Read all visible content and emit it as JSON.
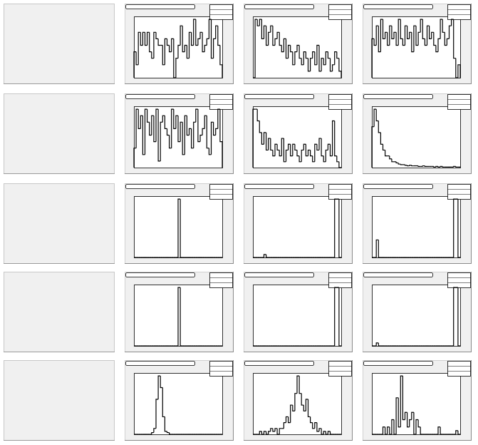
{
  "panels": [
    {
      "values": [
        4,
        2,
        7,
        5,
        7,
        5,
        7,
        4,
        3,
        7,
        6,
        5,
        5,
        2,
        6,
        5,
        4,
        6,
        0,
        3,
        5,
        8,
        4,
        5,
        3,
        7,
        5,
        9,
        5,
        6,
        7,
        4,
        5,
        6,
        9,
        3,
        6,
        8,
        5,
        2
      ]
    },
    {
      "values": [
        0,
        9,
        8,
        9,
        6,
        8,
        5,
        7,
        8,
        5,
        6,
        7,
        5,
        4,
        6,
        3,
        5,
        4,
        2,
        4,
        5,
        3,
        2,
        4,
        3,
        1,
        3,
        4,
        2,
        5,
        1,
        3,
        2,
        4,
        3,
        1,
        2,
        4,
        3,
        1
      ]
    },
    {
      "values": [
        6,
        5,
        8,
        4,
        9,
        6,
        7,
        5,
        8,
        6,
        7,
        5,
        9,
        6,
        5,
        8,
        6,
        7,
        4,
        8,
        5,
        7,
        9,
        6,
        5,
        8,
        6,
        7,
        5,
        4,
        6,
        9,
        7,
        5,
        6,
        8,
        9,
        3,
        0,
        2
      ]
    },
    {
      "values": [
        3,
        9,
        6,
        8,
        2,
        9,
        7,
        5,
        8,
        4,
        9,
        1,
        7,
        8,
        6,
        5,
        3,
        9,
        6,
        8,
        4,
        7,
        2,
        8,
        5,
        6,
        3,
        7,
        9,
        4,
        5,
        6,
        8,
        3,
        2,
        7,
        5,
        6,
        9,
        4
      ]
    },
    {
      "values": [
        10,
        10,
        8,
        6,
        4,
        6,
        3,
        5,
        3,
        2,
        4,
        3,
        2,
        5,
        1,
        3,
        4,
        2,
        4,
        3,
        2,
        1,
        3,
        4,
        2,
        3,
        2,
        1,
        4,
        3,
        5,
        2,
        1,
        3,
        4,
        2,
        8,
        2,
        1,
        0
      ]
    },
    {
      "values": [
        7,
        10,
        8,
        6,
        4,
        3,
        2,
        2,
        1.5,
        1,
        1,
        0.8,
        0.6,
        0.5,
        0.5,
        0.4,
        0.3,
        0.4,
        0.3,
        0.3,
        0.3,
        0.2,
        0.2,
        0.3,
        0.2,
        0.2,
        0.2,
        0.2,
        0.1,
        0.2,
        0.1,
        0.2,
        0.1,
        0.1,
        0.1,
        0.1,
        0.1,
        0.2,
        0.1,
        0.1
      ]
    },
    {
      "values": [
        0,
        0,
        0,
        0,
        0,
        0,
        0,
        0,
        0,
        0,
        0,
        0,
        0,
        0,
        0,
        0,
        0,
        0,
        0,
        0,
        10,
        0,
        0,
        0,
        0,
        0,
        0,
        0,
        0,
        0,
        0,
        0,
        0,
        0,
        0,
        0,
        0,
        0,
        0,
        0
      ]
    },
    {
      "values": [
        0,
        0,
        0,
        0,
        0,
        0.5,
        0,
        0,
        0,
        0,
        0,
        0,
        0,
        0,
        0,
        0,
        0,
        0,
        0,
        0,
        0,
        0,
        0,
        0,
        0,
        0,
        0,
        0,
        0,
        0,
        0,
        0,
        0,
        0,
        0,
        0,
        0,
        10,
        10,
        0
      ]
    },
    {
      "values": [
        0,
        0,
        3,
        0,
        0,
        0,
        0,
        0,
        0,
        0,
        0,
        0,
        0,
        0,
        0,
        0,
        0,
        0,
        0,
        0,
        0,
        0,
        0,
        0,
        0,
        0,
        0,
        0,
        0,
        0,
        0,
        0,
        0,
        0,
        0,
        0,
        0,
        10,
        10,
        0
      ]
    },
    {
      "values": [
        0,
        0,
        0,
        0,
        0,
        0,
        0,
        0,
        0,
        0,
        0,
        0,
        0,
        0,
        0,
        0,
        0,
        0,
        0,
        0,
        10,
        0,
        0,
        0,
        0,
        0,
        0,
        0,
        0,
        0,
        0,
        0,
        0,
        0,
        0,
        0,
        0,
        0,
        0,
        0
      ]
    },
    {
      "values": [
        0,
        0,
        0,
        0,
        0,
        0,
        0,
        0,
        0,
        0,
        0,
        0,
        0,
        0,
        0,
        0,
        0,
        0,
        0,
        0,
        0,
        0,
        0,
        0,
        0,
        0,
        0,
        0,
        0,
        0,
        0,
        0,
        0,
        0,
        0,
        0,
        0,
        10,
        10,
        0
      ]
    },
    {
      "values": [
        0,
        0,
        0.5,
        0,
        0,
        0,
        0,
        0,
        0,
        0,
        0,
        0,
        0,
        0,
        0,
        0,
        0,
        0,
        0,
        0,
        0,
        0,
        0,
        0,
        0,
        0,
        0,
        0,
        0,
        0,
        0,
        0,
        0,
        0,
        0,
        0,
        0,
        10,
        10,
        0
      ]
    },
    {
      "values": [
        0,
        0,
        0,
        0,
        0,
        0,
        0,
        0,
        0.3,
        1,
        6,
        10,
        8,
        3,
        0.5,
        0.3,
        0,
        0,
        0,
        0,
        0,
        0,
        0,
        0,
        0,
        0,
        0,
        0,
        0,
        0,
        0,
        0,
        0,
        0,
        0,
        0,
        0,
        0,
        0,
        0
      ]
    },
    {
      "values": [
        0,
        0,
        0,
        0.5,
        0,
        0.5,
        0,
        0.5,
        1,
        0.5,
        1,
        0,
        1,
        1,
        2,
        3,
        2,
        5,
        4,
        7,
        10,
        7,
        5,
        4,
        6,
        3,
        2,
        1,
        2,
        0.5,
        1,
        0,
        0.5,
        0,
        0.5,
        0,
        0,
        0,
        0,
        0
      ]
    },
    {
      "values": [
        0,
        0,
        0,
        0,
        0,
        1,
        0,
        1,
        0,
        2,
        0,
        5,
        1,
        8,
        2,
        3,
        1,
        2,
        3,
        0,
        2,
        1,
        0,
        0,
        0,
        0,
        0,
        0,
        0,
        0,
        1,
        0,
        0,
        0,
        0,
        0,
        0,
        0,
        0.5,
        0
      ]
    }
  ]
}
